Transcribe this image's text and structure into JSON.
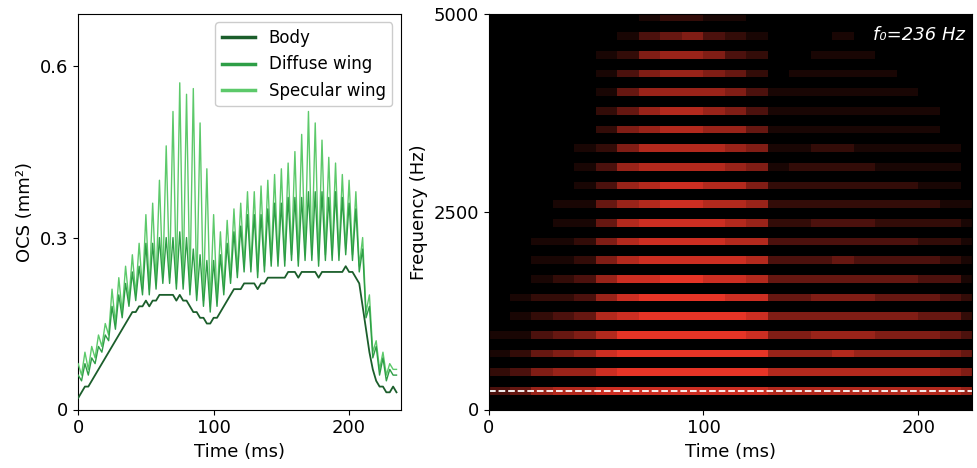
{
  "chart_data": [
    {
      "type": "line",
      "xlabel": "Time (ms)",
      "ylabel": "OCS (mm²)",
      "xlim": [
        0,
        238
      ],
      "ylim": [
        0,
        0.69
      ],
      "xticks": [
        0,
        100,
        200
      ],
      "yticks": [
        0,
        0.3,
        0.6
      ],
      "legend": "upper right",
      "x": [
        0,
        2.5,
        5,
        7.5,
        10,
        12.5,
        15,
        17.5,
        20,
        22.5,
        25,
        27.5,
        30,
        32.5,
        35,
        37.5,
        40,
        42.5,
        45,
        47.5,
        50,
        52.5,
        55,
        57.5,
        60,
        62.5,
        65,
        67.5,
        70,
        72.5,
        75,
        77.5,
        80,
        82.5,
        85,
        87.5,
        90,
        92.5,
        95,
        97.5,
        100,
        102.5,
        105,
        107.5,
        110,
        112.5,
        115,
        117.5,
        120,
        122.5,
        125,
        127.5,
        130,
        132.5,
        135,
        137.5,
        140,
        142.5,
        145,
        147.5,
        150,
        152.5,
        155,
        157.5,
        160,
        162.5,
        165,
        167.5,
        170,
        172.5,
        175,
        177.5,
        180,
        182.5,
        185,
        187.5,
        190,
        192.5,
        195,
        197.5,
        200,
        202.5,
        205,
        207.5,
        210,
        212.5,
        215,
        217.5,
        220,
        222.5,
        225,
        227.5,
        230,
        232.5,
        235
      ],
      "series": [
        {
          "name": "Body",
          "color": "#1b5e2b",
          "values": [
            0.02,
            0.03,
            0.04,
            0.04,
            0.05,
            0.06,
            0.07,
            0.08,
            0.09,
            0.1,
            0.11,
            0.12,
            0.13,
            0.14,
            0.15,
            0.16,
            0.17,
            0.17,
            0.18,
            0.18,
            0.19,
            0.18,
            0.19,
            0.19,
            0.2,
            0.2,
            0.2,
            0.2,
            0.2,
            0.19,
            0.2,
            0.19,
            0.19,
            0.18,
            0.17,
            0.17,
            0.16,
            0.16,
            0.15,
            0.15,
            0.16,
            0.16,
            0.17,
            0.18,
            0.19,
            0.2,
            0.21,
            0.21,
            0.21,
            0.22,
            0.22,
            0.22,
            0.22,
            0.21,
            0.22,
            0.22,
            0.23,
            0.23,
            0.23,
            0.23,
            0.23,
            0.23,
            0.24,
            0.24,
            0.24,
            0.23,
            0.24,
            0.24,
            0.24,
            0.24,
            0.24,
            0.23,
            0.24,
            0.24,
            0.24,
            0.24,
            0.24,
            0.24,
            0.24,
            0.25,
            0.24,
            0.24,
            0.23,
            0.22,
            0.18,
            0.14,
            0.1,
            0.07,
            0.05,
            0.04,
            0.04,
            0.03,
            0.03,
            0.04,
            0.03
          ]
        },
        {
          "name": "Diffuse wing",
          "color": "#2e9e46",
          "values": [
            0.06,
            0.05,
            0.08,
            0.06,
            0.09,
            0.08,
            0.11,
            0.1,
            0.13,
            0.12,
            0.18,
            0.14,
            0.2,
            0.16,
            0.22,
            0.18,
            0.24,
            0.19,
            0.25,
            0.2,
            0.29,
            0.2,
            0.29,
            0.21,
            0.3,
            0.22,
            0.3,
            0.22,
            0.3,
            0.21,
            0.31,
            0.21,
            0.3,
            0.2,
            0.28,
            0.19,
            0.27,
            0.18,
            0.26,
            0.17,
            0.26,
            0.18,
            0.27,
            0.2,
            0.29,
            0.22,
            0.31,
            0.23,
            0.32,
            0.24,
            0.34,
            0.24,
            0.34,
            0.23,
            0.34,
            0.24,
            0.35,
            0.25,
            0.36,
            0.25,
            0.36,
            0.25,
            0.37,
            0.26,
            0.37,
            0.25,
            0.37,
            0.26,
            0.38,
            0.26,
            0.38,
            0.25,
            0.38,
            0.26,
            0.37,
            0.26,
            0.38,
            0.26,
            0.37,
            0.27,
            0.36,
            0.26,
            0.35,
            0.24,
            0.28,
            0.16,
            0.18,
            0.09,
            0.11,
            0.06,
            0.09,
            0.05,
            0.07,
            0.06,
            0.06
          ]
        },
        {
          "name": "Specular wing",
          "color": "#5cc96a",
          "values": [
            0.08,
            0.06,
            0.1,
            0.07,
            0.11,
            0.09,
            0.13,
            0.11,
            0.15,
            0.13,
            0.21,
            0.15,
            0.23,
            0.17,
            0.25,
            0.19,
            0.27,
            0.2,
            0.29,
            0.21,
            0.34,
            0.21,
            0.36,
            0.22,
            0.4,
            0.23,
            0.46,
            0.23,
            0.52,
            0.22,
            0.57,
            0.22,
            0.55,
            0.21,
            0.56,
            0.2,
            0.5,
            0.19,
            0.42,
            0.18,
            0.34,
            0.19,
            0.31,
            0.21,
            0.33,
            0.23,
            0.35,
            0.24,
            0.36,
            0.25,
            0.38,
            0.25,
            0.38,
            0.24,
            0.39,
            0.25,
            0.4,
            0.26,
            0.41,
            0.26,
            0.42,
            0.26,
            0.43,
            0.27,
            0.45,
            0.26,
            0.48,
            0.27,
            0.52,
            0.27,
            0.5,
            0.26,
            0.47,
            0.27,
            0.44,
            0.27,
            0.43,
            0.27,
            0.41,
            0.28,
            0.4,
            0.27,
            0.38,
            0.25,
            0.3,
            0.17,
            0.2,
            0.1,
            0.12,
            0.07,
            0.1,
            0.06,
            0.08,
            0.07,
            0.07
          ]
        }
      ]
    },
    {
      "type": "heatmap",
      "xlabel": "Time (ms)",
      "ylabel": "Frequency (Hz)",
      "xlim": [
        0,
        225
      ],
      "ylim": [
        0,
        5000
      ],
      "xticks": [
        0,
        100,
        200
      ],
      "yticks": [
        0,
        2500,
        5000
      ],
      "annotation": "f₀=236 Hz",
      "f0": 236,
      "color": "#ff3a2a",
      "intensity_range": [
        0,
        10
      ],
      "x_edges": [
        0,
        10,
        20,
        30,
        40,
        50,
        60,
        70,
        80,
        90,
        100,
        110,
        120,
        130,
        140,
        150,
        160,
        170,
        180,
        190,
        200,
        210,
        220,
        230,
        240
      ],
      "harmonic_freqs": [
        236,
        472,
        708,
        944,
        1180,
        1416,
        1652,
        1888,
        2124,
        2360,
        2596,
        2832,
        3068,
        3304,
        3540,
        3776,
        4012,
        4248,
        4484,
        4720,
        4956
      ],
      "cells": [
        [
          3,
          4,
          6,
          7,
          7,
          8,
          8,
          8,
          8,
          8,
          8,
          8,
          8,
          7,
          7,
          7,
          7,
          7,
          7,
          7,
          7,
          7,
          6,
          3
        ],
        [
          2,
          3,
          5,
          6,
          6,
          8,
          9,
          9,
          9,
          9,
          9,
          9,
          9,
          7,
          7,
          7,
          7,
          7,
          7,
          7,
          7,
          6,
          5,
          2
        ],
        [
          1,
          2,
          4,
          5,
          6,
          8,
          9,
          9,
          9,
          9,
          9,
          9,
          9,
          6,
          6,
          6,
          7,
          6,
          6,
          6,
          6,
          5,
          4,
          1
        ],
        [
          1,
          1,
          3,
          4,
          5,
          7,
          9,
          9,
          9,
          9,
          9,
          9,
          8,
          5,
          5,
          6,
          6,
          6,
          5,
          5,
          5,
          4,
          3,
          1
        ],
        [
          0,
          1,
          2,
          3,
          4,
          7,
          8,
          9,
          9,
          9,
          9,
          9,
          8,
          5,
          5,
          5,
          5,
          5,
          5,
          5,
          4,
          4,
          2,
          0
        ],
        [
          0,
          1,
          2,
          2,
          3,
          6,
          8,
          9,
          9,
          9,
          9,
          8,
          8,
          4,
          4,
          5,
          5,
          5,
          4,
          4,
          4,
          3,
          2,
          0
        ],
        [
          0,
          0,
          1,
          2,
          3,
          6,
          8,
          8,
          9,
          9,
          8,
          8,
          7,
          4,
          4,
          4,
          4,
          4,
          4,
          4,
          3,
          3,
          1,
          0
        ],
        [
          0,
          0,
          1,
          1,
          2,
          5,
          7,
          8,
          8,
          8,
          8,
          8,
          7,
          3,
          3,
          3,
          4,
          3,
          3,
          3,
          3,
          2,
          1,
          0
        ],
        [
          0,
          0,
          1,
          1,
          2,
          5,
          7,
          8,
          8,
          8,
          8,
          7,
          7,
          3,
          3,
          3,
          3,
          3,
          3,
          3,
          2,
          2,
          1,
          0
        ],
        [
          0,
          0,
          0,
          1,
          1,
          4,
          7,
          8,
          8,
          8,
          8,
          7,
          6,
          2,
          2,
          3,
          3,
          3,
          2,
          2,
          2,
          2,
          1,
          0
        ],
        [
          0,
          0,
          0,
          1,
          1,
          4,
          6,
          7,
          8,
          8,
          7,
          7,
          6,
          2,
          2,
          2,
          2,
          2,
          2,
          2,
          2,
          1,
          1,
          0
        ],
        [
          0,
          0,
          0,
          0,
          1,
          3,
          6,
          7,
          8,
          8,
          7,
          7,
          5,
          2,
          2,
          2,
          2,
          2,
          2,
          2,
          1,
          1,
          0,
          0
        ],
        [
          0,
          0,
          0,
          0,
          1,
          3,
          6,
          7,
          7,
          7,
          7,
          6,
          5,
          1,
          2,
          2,
          2,
          2,
          1,
          1,
          1,
          1,
          0,
          0
        ],
        [
          0,
          0,
          0,
          0,
          1,
          2,
          5,
          7,
          7,
          7,
          7,
          6,
          5,
          1,
          1,
          2,
          2,
          1,
          1,
          1,
          1,
          1,
          0,
          0
        ],
        [
          0,
          0,
          0,
          0,
          0,
          2,
          5,
          6,
          7,
          7,
          6,
          6,
          4,
          1,
          1,
          1,
          1,
          1,
          1,
          1,
          1,
          0,
          0,
          0
        ],
        [
          0,
          0,
          0,
          0,
          0,
          2,
          4,
          6,
          7,
          7,
          6,
          5,
          3,
          1,
          1,
          1,
          1,
          1,
          1,
          1,
          1,
          0,
          0,
          0
        ],
        [
          0,
          0,
          0,
          0,
          0,
          1,
          4,
          6,
          6,
          6,
          6,
          5,
          3,
          1,
          1,
          1,
          1,
          1,
          1,
          1,
          0,
          0,
          0,
          0
        ],
        [
          0,
          0,
          0,
          0,
          0,
          1,
          3,
          5,
          6,
          6,
          5,
          4,
          2,
          0,
          1,
          1,
          1,
          1,
          1,
          0,
          0,
          0,
          0,
          0
        ],
        [
          0,
          0,
          0,
          0,
          0,
          1,
          2,
          5,
          6,
          6,
          5,
          3,
          2,
          0,
          0,
          1,
          1,
          1,
          0,
          0,
          0,
          0,
          0,
          0
        ],
        [
          0,
          0,
          0,
          0,
          0,
          0,
          1,
          3,
          4,
          5,
          3,
          2,
          1,
          0,
          0,
          0,
          1,
          0,
          0,
          0,
          0,
          0,
          0,
          0
        ],
        [
          0,
          0,
          0,
          0,
          0,
          0,
          0,
          1,
          2,
          2,
          1,
          1,
          0,
          0,
          0,
          0,
          0,
          0,
          0,
          0,
          0,
          0,
          0,
          0
        ]
      ]
    }
  ]
}
